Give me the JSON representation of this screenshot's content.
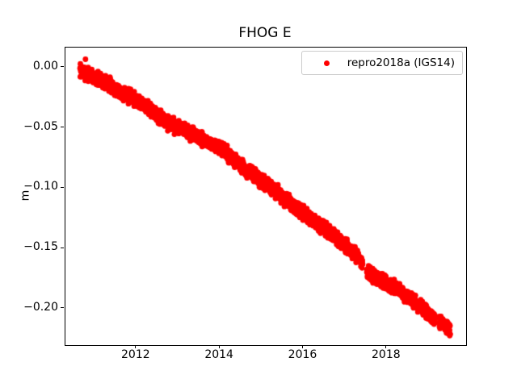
{
  "figure": {
    "background": "#ffffff",
    "text_color": "#000000"
  },
  "chart_data": {
    "type": "scatter",
    "title": "FHOG E",
    "xlabel": "",
    "ylabel": "m",
    "grid": false,
    "xlim": [
      2010.3,
      2019.9
    ],
    "ylim": [
      -0.2301,
      0.0167
    ],
    "xticks": {
      "values": [
        2012,
        2014,
        2016,
        2018
      ],
      "labels": [
        "2012",
        "2014",
        "2016",
        "2018"
      ]
    },
    "yticks": {
      "values": [
        0.0,
        -0.05,
        -0.1,
        -0.15,
        -0.2
      ],
      "labels": [
        "0.00",
        "−0.05",
        "−0.10",
        "−0.15",
        "−0.20"
      ]
    },
    "legend": {
      "position": "upper right",
      "border_color": "#cccccc",
      "entries": [
        {
          "label": "repro2018a (IGS14)",
          "marker": "circle",
          "color": "#ff0000"
        }
      ]
    },
    "series": [
      {
        "name": "repro2018a (IGS14)",
        "color": "#ff0000",
        "marker_radius_px": 3.4,
        "sampling_per_year": 365,
        "noise_amplitude_m": 0.004,
        "noise_seed": 7,
        "trend_mm_per_year": -24.6,
        "anchors": [
          [
            2010.65,
            -0.002
          ],
          [
            2010.85,
            -0.005
          ],
          [
            2011.05,
            -0.009
          ],
          [
            2011.25,
            -0.012
          ],
          [
            2011.45,
            -0.016
          ],
          [
            2011.65,
            -0.02
          ],
          [
            2011.85,
            -0.024
          ],
          [
            2012.05,
            -0.028
          ],
          [
            2012.25,
            -0.032
          ],
          [
            2012.45,
            -0.038
          ],
          [
            2012.65,
            -0.043
          ],
          [
            2012.9,
            -0.048
          ],
          [
            2013.1,
            -0.05
          ],
          [
            2013.3,
            -0.055
          ],
          [
            2013.5,
            -0.058
          ],
          [
            2013.7,
            -0.062
          ],
          [
            2013.9,
            -0.065
          ],
          [
            2014.1,
            -0.069
          ],
          [
            2014.35,
            -0.077
          ],
          [
            2014.55,
            -0.083
          ],
          [
            2014.75,
            -0.087
          ],
          [
            2015.0,
            -0.094
          ],
          [
            2015.25,
            -0.1
          ],
          [
            2015.5,
            -0.107
          ],
          [
            2015.75,
            -0.114
          ],
          [
            2016.0,
            -0.121
          ],
          [
            2016.25,
            -0.127
          ],
          [
            2016.5,
            -0.133
          ],
          [
            2016.75,
            -0.14
          ],
          [
            2017.0,
            -0.147
          ],
          [
            2017.25,
            -0.155
          ],
          [
            2017.42,
            -0.162
          ],
          [
            2017.55,
            -0.17
          ],
          [
            2017.8,
            -0.175
          ],
          [
            2018.05,
            -0.18
          ],
          [
            2018.3,
            -0.185
          ],
          [
            2018.55,
            -0.191
          ],
          [
            2018.8,
            -0.198
          ],
          [
            2019.0,
            -0.204
          ],
          [
            2019.16,
            -0.209
          ],
          [
            2019.26,
            -0.211
          ],
          [
            2019.4,
            -0.214
          ],
          [
            2019.52,
            -0.217
          ]
        ],
        "gaps": [
          [
            2017.42,
            2017.52
          ],
          [
            2019.16,
            2019.26
          ]
        ],
        "outliers": [
          [
            2010.78,
            0.007
          ]
        ]
      }
    ]
  }
}
